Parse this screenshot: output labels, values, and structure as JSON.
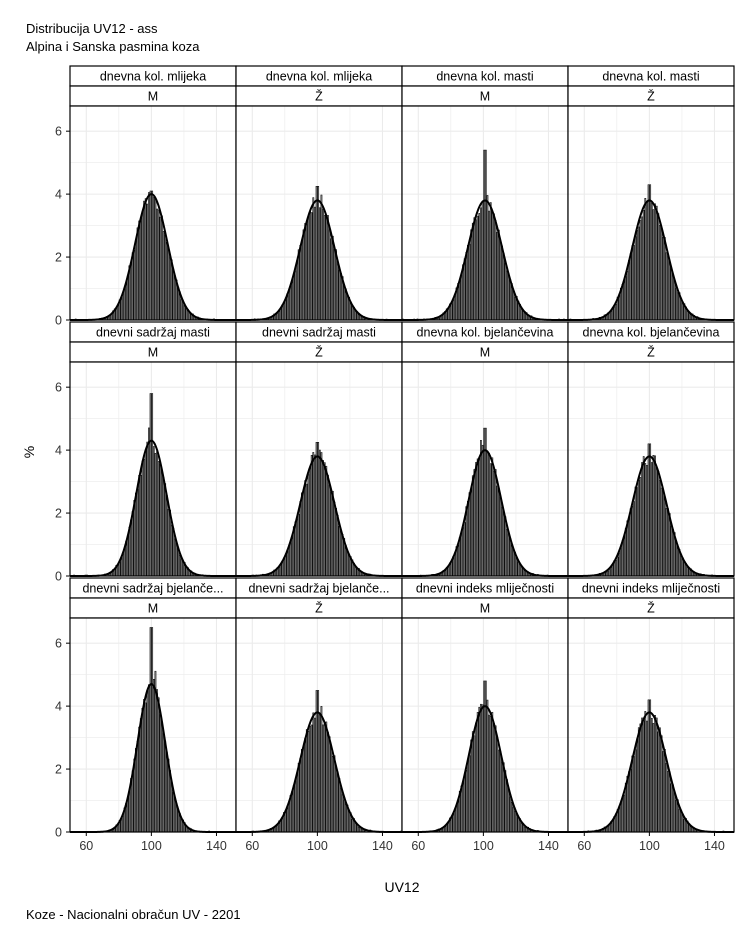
{
  "title": "Distribucija UV12 - ass",
  "subtitle": "Alpina i Sanska pasmina koza",
  "caption": "Koze - Nacionalni obračun UV - 2201",
  "chart_data": {
    "type": "bar",
    "xlabel": "UV12",
    "ylabel": "%",
    "xlim": [
      50,
      152
    ],
    "ylim": [
      0,
      6.8
    ],
    "x_ticks": [
      60,
      100,
      140
    ],
    "y_ticks": [
      0,
      2,
      4,
      6
    ],
    "grid": true,
    "colors": {
      "bar_fill": "#8c8c8c",
      "bar_stroke": "#000000",
      "curve": "#000000",
      "grid": "#ebebeb"
    },
    "panels": [
      {
        "row": 0,
        "col": 0,
        "trait": "dnevna kol. mlijeka",
        "sex": "M",
        "mean": 100,
        "sd": 10,
        "peak": 4.0,
        "max_bar": 4.1
      },
      {
        "row": 0,
        "col": 1,
        "trait": "dnevna kol. mlijeka",
        "sex": "Ž",
        "mean": 100,
        "sd": 10.5,
        "peak": 3.8,
        "max_bar": 4.25
      },
      {
        "row": 0,
        "col": 2,
        "trait": "dnevna kol. masti",
        "sex": "M",
        "mean": 101,
        "sd": 10.5,
        "peak": 3.8,
        "max_bar": 5.4
      },
      {
        "row": 0,
        "col": 3,
        "trait": "dnevna kol. masti",
        "sex": "Ž",
        "mean": 100,
        "sd": 10.5,
        "peak": 3.8,
        "max_bar": 4.3
      },
      {
        "row": 1,
        "col": 0,
        "trait": "dnevni sadržaj masti",
        "sex": "M",
        "mean": 100,
        "sd": 9.3,
        "peak": 4.3,
        "max_bar": 5.8
      },
      {
        "row": 1,
        "col": 1,
        "trait": "dnevni sadržaj masti",
        "sex": "Ž",
        "mean": 100,
        "sd": 10.5,
        "peak": 3.8,
        "max_bar": 4.25
      },
      {
        "row": 1,
        "col": 2,
        "trait": "dnevna kol. bjelančevina",
        "sex": "M",
        "mean": 101,
        "sd": 10,
        "peak": 4.0,
        "max_bar": 4.7
      },
      {
        "row": 1,
        "col": 3,
        "trait": "dnevna kol. bjelančevina",
        "sex": "Ž",
        "mean": 100,
        "sd": 10.5,
        "peak": 3.8,
        "max_bar": 4.2
      },
      {
        "row": 2,
        "col": 0,
        "trait": "dnevni sadržaj bjelanče...",
        "sex": "M",
        "mean": 100,
        "sd": 8.5,
        "peak": 4.7,
        "max_bar": 6.5
      },
      {
        "row": 2,
        "col": 1,
        "trait": "dnevni sadržaj bjelanče...",
        "sex": "Ž",
        "mean": 100,
        "sd": 10.5,
        "peak": 3.8,
        "max_bar": 4.5
      },
      {
        "row": 2,
        "col": 2,
        "trait": "dnevni indeks mliječnosti",
        "sex": "M",
        "mean": 101,
        "sd": 10,
        "peak": 4.0,
        "max_bar": 4.8
      },
      {
        "row": 2,
        "col": 3,
        "trait": "dnevni indeks mliječnosti",
        "sex": "Ž",
        "mean": 100,
        "sd": 10.5,
        "peak": 3.8,
        "max_bar": 4.2
      }
    ]
  }
}
